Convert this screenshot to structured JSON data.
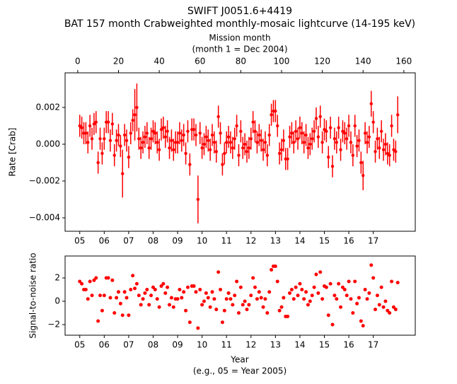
{
  "chart_data": [
    {
      "type": "errorbar",
      "title": "SWIFT J0051.6+4419",
      "subtitle": "BAT 157 month Crabweighted monthly-mosaic lightcurve (14-195 keV)",
      "x2label": "Mission month",
      "x2sublabel": "(month 1 = Dec 2004)",
      "ylabel": "Rate [Crab]",
      "color": "#ff0000",
      "xlim": [
        -6.2,
        165.6
      ],
      "ylim": [
        -0.00473,
        0.00388
      ],
      "x2ticks": [
        0,
        20,
        40,
        60,
        80,
        100,
        120,
        140,
        160
      ],
      "xticks": [
        {
          "value": 1,
          "label": "05"
        },
        {
          "value": 13,
          "label": "06"
        },
        {
          "value": 25,
          "label": "07"
        },
        {
          "value": 37,
          "label": "08"
        },
        {
          "value": 49,
          "label": "09"
        },
        {
          "value": 61,
          "label": "10"
        },
        {
          "value": 73,
          "label": "11"
        },
        {
          "value": 85,
          "label": "12"
        },
        {
          "value": 97,
          "label": "13"
        },
        {
          "value": 109,
          "label": "14"
        },
        {
          "value": 121,
          "label": "15"
        },
        {
          "value": 133,
          "label": "16"
        },
        {
          "value": 145,
          "label": "17"
        }
      ],
      "yticks": [
        {
          "value": -0.004,
          "label": "−0.004"
        },
        {
          "value": -0.002,
          "label": "−0.002"
        },
        {
          "value": 0,
          "label": "0.000"
        },
        {
          "value": 0.002,
          "label": "0.002"
        }
      ],
      "x": [
        1,
        2,
        3,
        4,
        5,
        6,
        7,
        8,
        9,
        10,
        11,
        12,
        13,
        14,
        15,
        16,
        17,
        18,
        19,
        20,
        21,
        22,
        23,
        24,
        25,
        26,
        27,
        28,
        29,
        30,
        31,
        32,
        33,
        34,
        35,
        36,
        37,
        38,
        39,
        40,
        41,
        42,
        43,
        44,
        45,
        46,
        47,
        48,
        49,
        50,
        51,
        52,
        53,
        54,
        55,
        56,
        57,
        58,
        59,
        60,
        61,
        62,
        63,
        64,
        65,
        66,
        67,
        68,
        69,
        70,
        71,
        72,
        73,
        74,
        75,
        76,
        77,
        78,
        79,
        80,
        81,
        82,
        83,
        84,
        85,
        86,
        87,
        88,
        89,
        90,
        91,
        92,
        93,
        94,
        95,
        96,
        97,
        98,
        99,
        100,
        101,
        102,
        103,
        104,
        105,
        106,
        107,
        108,
        109,
        110,
        111,
        112,
        113,
        114,
        115,
        116,
        117,
        118,
        119,
        120,
        121,
        122,
        123,
        124,
        125,
        126,
        127,
        128,
        129,
        130,
        131,
        132,
        133,
        134,
        135,
        136,
        137,
        138,
        139,
        140,
        141,
        142,
        143,
        144,
        145,
        146,
        147,
        148,
        149,
        150,
        151,
        152,
        153,
        154,
        155,
        156,
        157
      ],
      "values": [
        0.001,
        0.0009,
        0.0006,
        0.0006,
        0.0001,
        0.001,
        0.0003,
        0.0011,
        0.0012,
        -0.001,
        0.0003,
        -0.0005,
        0.0003,
        0.0012,
        0.0012,
        0.0002,
        0.0011,
        -0.0006,
        0.0002,
        0.0005,
        -0.0001,
        -0.0016,
        0.0005,
        0.0002,
        -0.0007,
        0.0006,
        0.0013,
        0.0016,
        0.002,
        0.0003,
        -0.0002,
        0.0001,
        0.0004,
        0.0006,
        -0.0002,
        0.0003,
        0.0007,
        0.0006,
        0.0001,
        -0.0003,
        0.0008,
        0.0009,
        0.0004,
        0.0007,
        -0.0002,
        0.0002,
        -0.0003,
        0.0001,
        0.0001,
        0.0006,
        0.0002,
        0.0005,
        -0.0005,
        0.0007,
        -0.0011,
        0.0008,
        0.0008,
        0.0005,
        -0.003,
        0.0006,
        -0.0002,
        0,
        0.0004,
        0.0002,
        -0.0003,
        0.0005,
        0.0001,
        -0.0004,
        0.0015,
        0.0006,
        -0.0011,
        -0.0005,
        0.0001,
        0.0004,
        0.0001,
        -0.0002,
        0.0003,
        0.001,
        -0.0006,
        0.0007,
        -0.0002,
        0,
        -0.0004,
        -0.0002,
        0.0003,
        0.0012,
        0.0007,
        0.0001,
        0.0005,
        0.0002,
        -0.0003,
        0.0001,
        -0.0006,
        0.0005,
        0.0016,
        0.0018,
        0.0018,
        0.001,
        -0.0005,
        -0.0003,
        0.0002,
        -0.0008,
        -0.0008,
        0.0004,
        0.0006,
        0.0001,
        0.0007,
        0.0003,
        0.0009,
        0.0006,
        0.0001,
        0.0005,
        -0.0002,
        0,
        0.0003,
        0.0007,
        0.0014,
        0.0004,
        0.0015,
        0.0001,
        0.0008,
        0.0007,
        -0.0007,
        0.0009,
        -0.0012,
        0.0003,
        0.0001,
        0.0009,
        -0.0003,
        0.0007,
        0.0006,
        0.0003,
        0.001,
        0.0001,
        -0.0006,
        0.001,
        -0.0001,
        0.0002,
        -0.001,
        -0.0017,
        0.0006,
        0.0001,
        0.0004,
        0.0022,
        0.0012,
        -0.0004,
        0.0003,
        -0.0002,
        0.0007,
        -0.0003,
        0,
        -0.0005,
        -0.0006,
        0.001,
        -0.0003,
        -0.0004,
        0.0016
      ],
      "errors": [
        0.0006,
        0.0006,
        0.0006,
        0.0006,
        0.0006,
        0.0006,
        0.0006,
        0.0006,
        0.0006,
        0.0006,
        0.0006,
        0.0006,
        0.0006,
        0.0006,
        0.0006,
        0.0006,
        0.0006,
        0.0006,
        0.0006,
        0.0006,
        0.0006,
        0.0013,
        0.0006,
        0.0006,
        0.0006,
        0.0006,
        0.0006,
        0.0014,
        0.0013,
        0.0006,
        0.0006,
        0.0006,
        0.0006,
        0.0006,
        0.0006,
        0.0006,
        0.0006,
        0.0006,
        0.0006,
        0.0006,
        0.0006,
        0.0006,
        0.0006,
        0.0006,
        0.0006,
        0.0006,
        0.0006,
        0.0006,
        0.0006,
        0.0006,
        0.0006,
        0.0006,
        0.0006,
        0.0006,
        0.0006,
        0.0006,
        0.0006,
        0.0006,
        0.0013,
        0.0006,
        0.0006,
        0.0006,
        0.0006,
        0.0006,
        0.0006,
        0.0006,
        0.0006,
        0.0006,
        0.0006,
        0.0006,
        0.0006,
        0.0006,
        0.0006,
        0.0006,
        0.0006,
        0.0006,
        0.0006,
        0.0006,
        0.0006,
        0.0006,
        0.0006,
        0.0006,
        0.0006,
        0.0006,
        0.0006,
        0.0006,
        0.0006,
        0.0006,
        0.0006,
        0.0006,
        0.0006,
        0.0006,
        0.0006,
        0.0006,
        0.0006,
        0.0006,
        0.0006,
        0.0006,
        0.0006,
        0.0006,
        0.0006,
        0.0006,
        0.0006,
        0.0006,
        0.0006,
        0.0006,
        0.0006,
        0.0006,
        0.0006,
        0.0006,
        0.0006,
        0.0006,
        0.0006,
        0.0006,
        0.0006,
        0.0006,
        0.0006,
        0.0006,
        0.0006,
        0.0006,
        0.0006,
        0.0006,
        0.0006,
        0.0006,
        0.0006,
        0.0006,
        0.0006,
        0.0006,
        0.0006,
        0.0006,
        0.0006,
        0.0006,
        0.0006,
        0.0006,
        0.0006,
        0.0006,
        0.0006,
        0.0006,
        0.0006,
        0.0008,
        0.0006,
        0.0006,
        0.0006,
        0.0007,
        0.0006,
        0.0006,
        0.0006,
        0.0006,
        0.0006,
        0.0006,
        0.0006,
        0.0006,
        0.0006,
        0.0006,
        0.0006,
        0.0006,
        0.001
      ]
    },
    {
      "type": "scatter",
      "ylabel": "Signal-to-noise ratio",
      "xlabel": "Year",
      "xsublabel": "(e.g., 05 = Year 2005)",
      "color": "#ff0000",
      "xlim": [
        -6.2,
        165.6
      ],
      "ylim": [
        -2.91,
        3.88
      ],
      "xticks": [
        {
          "value": 1,
          "label": "05"
        },
        {
          "value": 13,
          "label": "06"
        },
        {
          "value": 25,
          "label": "07"
        },
        {
          "value": 37,
          "label": "08"
        },
        {
          "value": 49,
          "label": "09"
        },
        {
          "value": 61,
          "label": "10"
        },
        {
          "value": 73,
          "label": "11"
        },
        {
          "value": 85,
          "label": "12"
        },
        {
          "value": 97,
          "label": "13"
        },
        {
          "value": 109,
          "label": "14"
        },
        {
          "value": 121,
          "label": "15"
        },
        {
          "value": 133,
          "label": "16"
        },
        {
          "value": 145,
          "label": "17"
        }
      ],
      "yticks": [
        {
          "value": -2,
          "label": "−2"
        },
        0,
        2
      ],
      "values": [
        1.7,
        1.5,
        1.0,
        1.0,
        0.2,
        1.7,
        0.5,
        1.8,
        2.0,
        -1.7,
        0.5,
        -0.8,
        0.5,
        2.0,
        2.0,
        0.3,
        1.8,
        -1.0,
        0.3,
        0.8,
        -0.2,
        -1.2,
        0.8,
        0.3,
        -1.2,
        1.0,
        2.2,
        1.1,
        1.5,
        0.5,
        -0.3,
        0.2,
        0.7,
        1.0,
        -0.3,
        0.5,
        1.2,
        1.0,
        0.2,
        -0.5,
        1.3,
        1.5,
        0.7,
        1.2,
        -0.3,
        0.3,
        -0.5,
        0.2,
        0.2,
        1.0,
        0.3,
        0.8,
        -0.8,
        1.2,
        -1.8,
        1.3,
        1.3,
        0.8,
        -2.3,
        1.0,
        -0.3,
        0,
        0.7,
        0.3,
        -0.5,
        0.8,
        0.2,
        -0.7,
        2.5,
        1.0,
        -1.8,
        -0.8,
        0.2,
        0.7,
        0.2,
        -0.3,
        0.5,
        1.7,
        -1.0,
        1.2,
        -0.3,
        0,
        -0.7,
        -0.3,
        0.5,
        2.0,
        1.2,
        0.2,
        0.8,
        0.3,
        -0.5,
        0.2,
        -1.0,
        0.8,
        2.7,
        3.0,
        3.0,
        1.7,
        -0.8,
        -0.5,
        0.3,
        -1.3,
        -1.3,
        0.7,
        1.0,
        0.2,
        1.2,
        0.5,
        1.5,
        1.0,
        0.2,
        0.8,
        -0.3,
        0,
        0.5,
        1.2,
        2.3,
        0.7,
        2.5,
        0.2,
        1.3,
        1.2,
        -1.2,
        1.5,
        -2.0,
        0.5,
        0.2,
        1.5,
        -0.5,
        1.2,
        1.0,
        0.5,
        1.7,
        0.2,
        -1.0,
        1.7,
        -0.2,
        0.3,
        -1.7,
        -2.1,
        1.0,
        0.2,
        0.7,
        3.1,
        2.0,
        -0.7,
        0.5,
        -0.3,
        1.2,
        -0.5,
        0,
        -0.8,
        -1.0,
        1.7,
        -0.5,
        -0.7,
        1.6
      ]
    }
  ]
}
